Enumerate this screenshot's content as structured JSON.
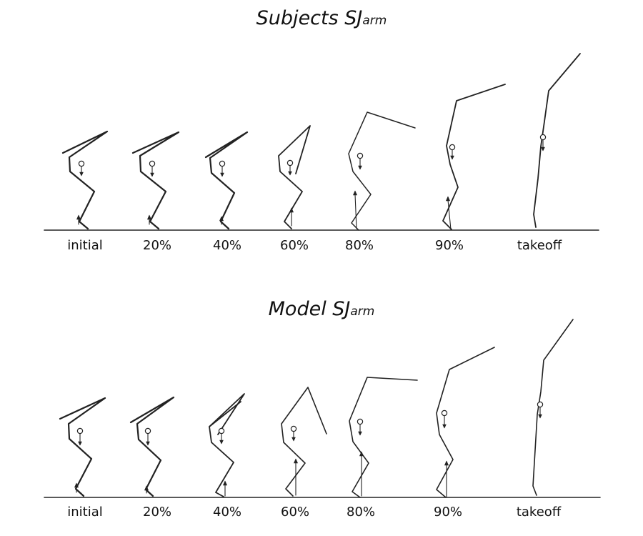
{
  "panels": [
    {
      "title_main": "Subjects SJ",
      "title_sub": "arm"
    },
    {
      "title_main": "Model SJ",
      "title_sub": "arm"
    }
  ],
  "phases": [
    "initial",
    "20%",
    "40%",
    "60%",
    "80%",
    "90%",
    "takeoff"
  ],
  "colors": {
    "stroke": "#222222",
    "text": "#111111"
  }
}
